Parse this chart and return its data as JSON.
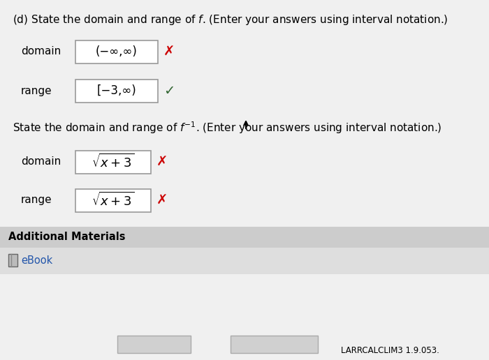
{
  "white_bg": "#f0f0f0",
  "domain_label": "domain",
  "range_label": "range",
  "domain_value": "(−∞,∞)",
  "range_value": "[−3,∞)",
  "inv_domain_label": "domain",
  "inv_range_label": "range",
  "additional_materials_text": "Additional Materials",
  "ebook_text": "eBook",
  "footer_text": "LARRCALCLIM3 1.9.053.",
  "red_color": "#cc0000",
  "green_color": "#336633",
  "box_border": "#999999",
  "section2_bg": "#cccccc",
  "ebook_bg": "#dedede",
  "btn_bg": "#d0d0d0"
}
